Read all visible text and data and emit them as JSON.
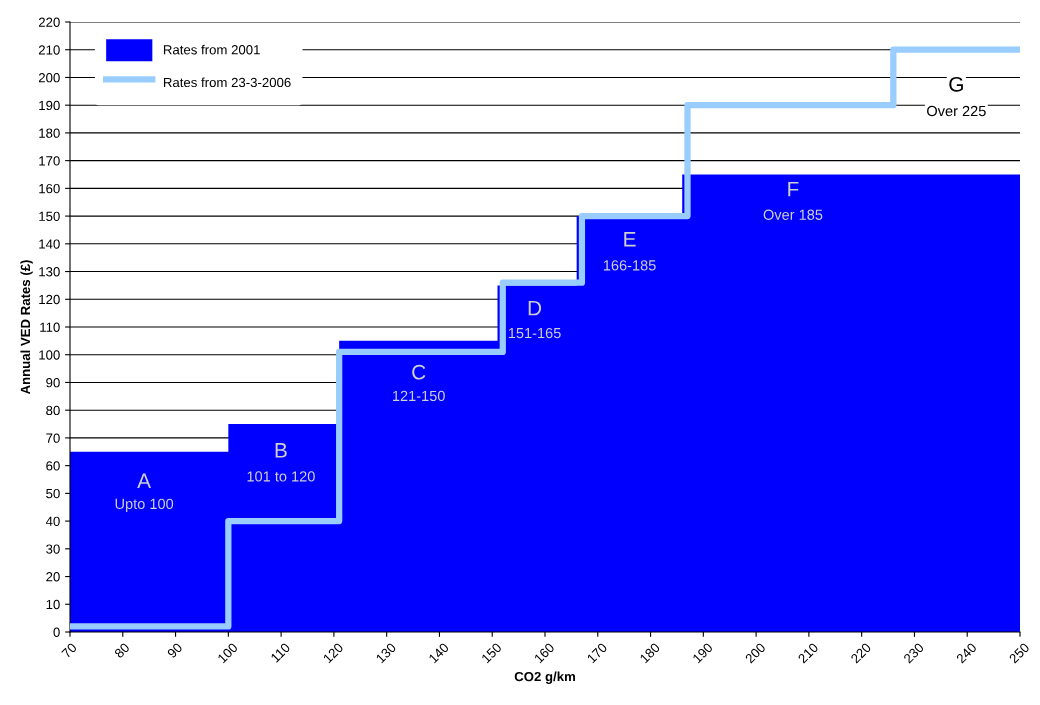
{
  "chart_data": {
    "type": "area",
    "xlabel": "CO2 g/km",
    "ylabel": "Annual VED Rates (£)",
    "series": [
      {
        "name": "Rates from 2001",
        "color": "#0000ff",
        "x": [
          70,
          100,
          100,
          121,
          121,
          151,
          151,
          166,
          166,
          186,
          186,
          250
        ],
        "values": [
          65,
          65,
          75,
          75,
          105,
          105,
          125,
          125,
          150,
          150,
          165,
          165
        ]
      },
      {
        "name": "Rates from 23-3-2006",
        "type": "step",
        "color": "#99ccff",
        "x": [
          70,
          100,
          121,
          152,
          167,
          187,
          226,
          250
        ],
        "values": [
          2,
          40,
          101,
          126,
          150,
          190,
          210,
          210
        ]
      }
    ],
    "xlim": [
      70,
      250
    ],
    "ylim": [
      0,
      220
    ],
    "xticks": [
      70,
      80,
      90,
      100,
      110,
      120,
      130,
      140,
      150,
      160,
      170,
      180,
      190,
      200,
      210,
      220,
      230,
      240,
      250
    ],
    "yticks": [
      0,
      10,
      20,
      30,
      40,
      50,
      60,
      70,
      80,
      90,
      100,
      110,
      120,
      130,
      140,
      150,
      160,
      170,
      180,
      190,
      200,
      210,
      220
    ],
    "grid": "y",
    "legend": "top left",
    "annotations": [
      "A",
      "Upto 100",
      "B",
      "101 to 120",
      "C",
      "121-150",
      "D",
      "151-165",
      "E",
      "166-185",
      "F",
      "Over 185",
      "G",
      "Over 225"
    ]
  }
}
